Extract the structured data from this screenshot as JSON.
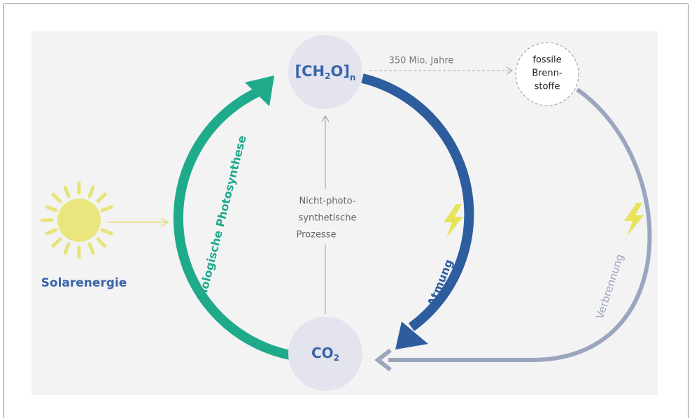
{
  "nodes": {
    "ch2o": {
      "parts": [
        "[CH",
        "2",
        "O]",
        "n"
      ]
    },
    "co2": {
      "parts": [
        "CO",
        "2"
      ]
    },
    "fossil": {
      "lines": [
        "fossile",
        "Brenn-",
        "stoffe"
      ]
    },
    "solar": {
      "label": "Solarenergie"
    }
  },
  "edges": {
    "time": {
      "label": "350 Mio. Jahre"
    },
    "photosynthesis": {
      "label": "biologische Photosynthese"
    },
    "respiration": {
      "label": "Atmung"
    },
    "combustion": {
      "label": "Verbrennung"
    },
    "nonphoto": {
      "lines": [
        "Nicht-photo-",
        "synthetische",
        "Prozesse"
      ]
    }
  }
}
